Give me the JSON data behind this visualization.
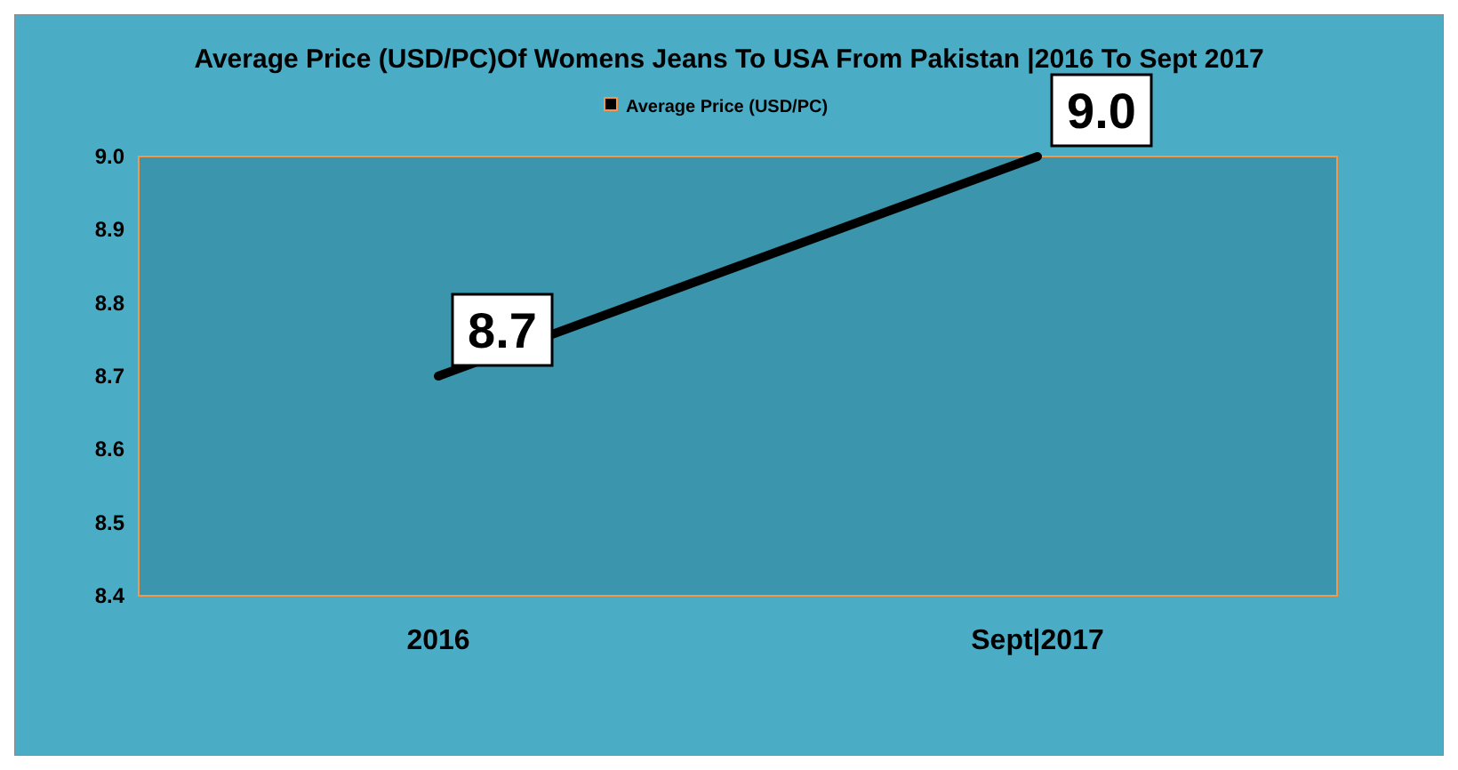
{
  "chart_data": {
    "type": "line",
    "title": "Average Price (USD/PC)Of Womens Jeans To USA From Pakistan |2016 To Sept 2017",
    "categories": [
      "2016",
      "Sept|2017"
    ],
    "series": [
      {
        "name": "Average Price (USD/PC)",
        "color": "#000000",
        "values": [
          8.7,
          9.0
        ],
        "value_labels": [
          "8.7",
          "9.0"
        ]
      }
    ],
    "ylim": [
      8.4,
      9.0
    ],
    "yticks": [
      8.4,
      8.5,
      8.6,
      8.7,
      8.8,
      8.9,
      {
        "value": 9,
        "label": "9.0"
      }
    ],
    "legend": "top",
    "marker": "none",
    "line_style": "solid",
    "grid": false
  }
}
